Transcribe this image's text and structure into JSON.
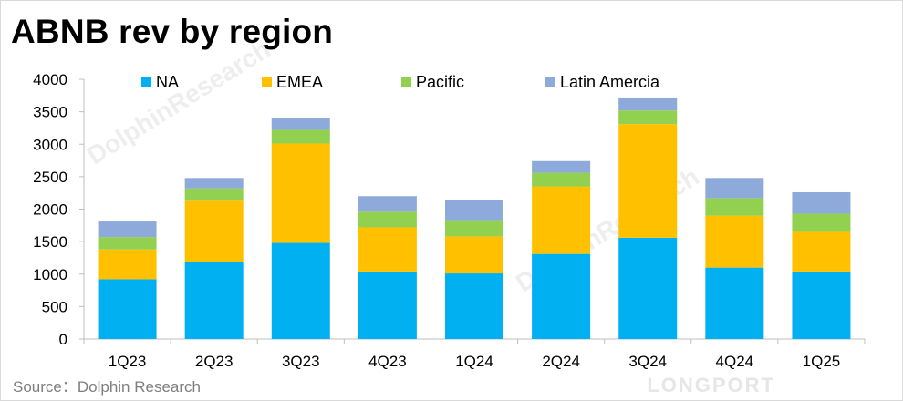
{
  "title": "ABNB rev by region",
  "source": "Source：Dolphin Research",
  "watermarks": [
    "LONGPORT",
    "DolphinResearch",
    "DolphinResearch"
  ],
  "chart_data": {
    "type": "bar",
    "stacked": true,
    "categories": [
      "1Q23",
      "2Q23",
      "3Q23",
      "4Q23",
      "1Q24",
      "2Q24",
      "3Q24",
      "4Q24",
      "1Q25"
    ],
    "series": [
      {
        "name": "NA",
        "color": "#00b0f0",
        "values": [
          920,
          1180,
          1480,
          1040,
          1010,
          1310,
          1560,
          1100,
          1040
        ]
      },
      {
        "name": "EMEA",
        "color": "#ffc000",
        "values": [
          460,
          950,
          1530,
          680,
          570,
          1040,
          1750,
          800,
          610
        ]
      },
      {
        "name": "Pacific",
        "color": "#92d050",
        "values": [
          190,
          190,
          210,
          240,
          250,
          210,
          210,
          270,
          280
        ]
      },
      {
        "name": "Latin Amercia",
        "color": "#8eaadb",
        "values": [
          240,
          160,
          180,
          240,
          310,
          180,
          200,
          310,
          330
        ]
      }
    ],
    "yticks": [
      0,
      500,
      1000,
      1500,
      2000,
      2500,
      3000,
      3500,
      4000
    ],
    "ylim": [
      0,
      4000
    ],
    "legend_position": "top",
    "grid": false
  }
}
